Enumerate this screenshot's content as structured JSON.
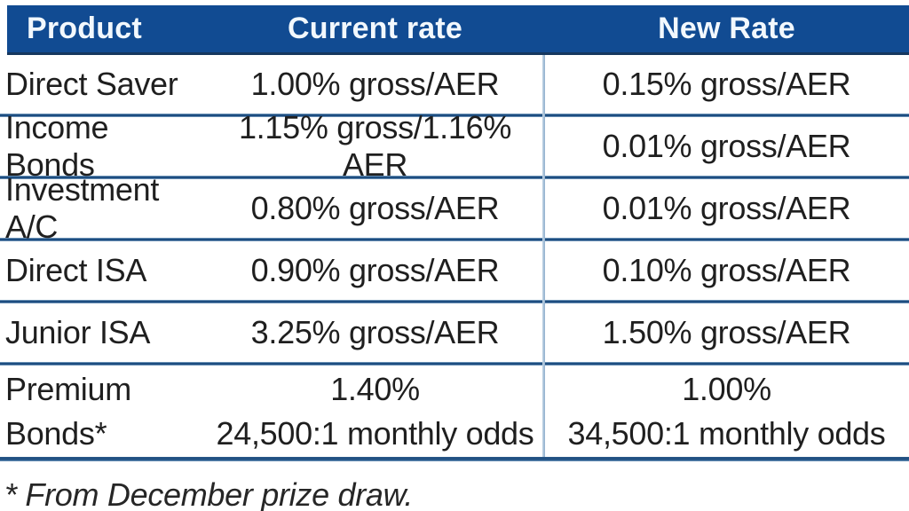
{
  "colors": {
    "header_bg": "#114b92",
    "header_text": "#f2f8fd",
    "divider_blue": "#1d4d80",
    "body_text": "#1f1f1f"
  },
  "table": {
    "header": {
      "product": "Product",
      "current_rate": "Current rate",
      "new_rate": "New Rate"
    },
    "rows": [
      {
        "product": "Direct Saver",
        "current": "1.00% gross/AER",
        "new": "0.15% gross/AER"
      },
      {
        "product": "Income Bonds",
        "current": "1.15% gross/1.16% AER",
        "new": "0.01% gross/AER"
      },
      {
        "product": "Investment A/C",
        "current": "0.80% gross/AER",
        "new": "0.01% gross/AER"
      },
      {
        "product": "Direct ISA",
        "current": "0.90% gross/AER",
        "new": "0.10% gross/AER"
      },
      {
        "product": "Junior ISA",
        "current": "3.25% gross/AER",
        "new": "1.50% gross/AER"
      }
    ],
    "premium_row": {
      "product": "Premium Bonds*",
      "current_rate": "1.40%",
      "current_odds": "24,500:1 monthly odds",
      "new_rate": "1.00%",
      "new_odds": "34,500:1 monthly odds"
    },
    "footnote": "* From December prize draw."
  }
}
